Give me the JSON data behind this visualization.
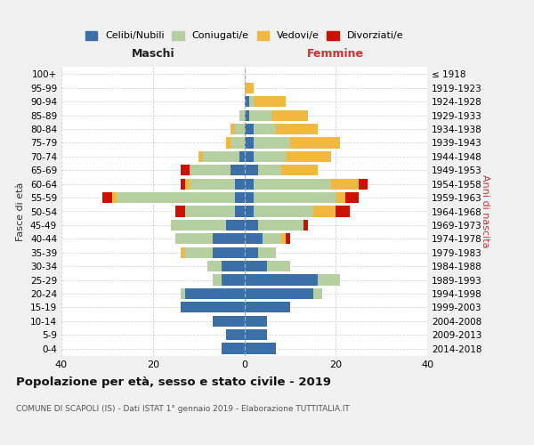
{
  "age_groups": [
    "0-4",
    "5-9",
    "10-14",
    "15-19",
    "20-24",
    "25-29",
    "30-34",
    "35-39",
    "40-44",
    "45-49",
    "50-54",
    "55-59",
    "60-64",
    "65-69",
    "70-74",
    "75-79",
    "80-84",
    "85-89",
    "90-94",
    "95-99",
    "100+"
  ],
  "birth_years": [
    "2014-2018",
    "2009-2013",
    "2004-2008",
    "1999-2003",
    "1994-1998",
    "1989-1993",
    "1984-1988",
    "1979-1983",
    "1974-1978",
    "1969-1973",
    "1964-1968",
    "1959-1963",
    "1954-1958",
    "1949-1953",
    "1944-1948",
    "1939-1943",
    "1934-1938",
    "1929-1933",
    "1924-1928",
    "1919-1923",
    "≤ 1918"
  ],
  "colors": {
    "celibi": "#3a6fa8",
    "coniugati": "#b5cfa0",
    "vedovi": "#f0b840",
    "divorziati": "#cc1100"
  },
  "males": {
    "celibi": [
      5,
      4,
      7,
      14,
      13,
      5,
      5,
      7,
      7,
      4,
      2,
      2,
      2,
      3,
      1,
      0,
      0,
      0,
      0,
      0,
      0
    ],
    "coniugati": [
      0,
      0,
      0,
      0,
      1,
      2,
      3,
      6,
      8,
      12,
      11,
      26,
      10,
      9,
      8,
      3,
      2,
      1,
      0,
      0,
      0
    ],
    "vedovi": [
      0,
      0,
      0,
      0,
      0,
      0,
      0,
      1,
      0,
      0,
      0,
      1,
      1,
      0,
      1,
      1,
      1,
      0,
      0,
      0,
      0
    ],
    "divorziati": [
      0,
      0,
      0,
      0,
      0,
      0,
      0,
      0,
      0,
      0,
      2,
      2,
      1,
      2,
      0,
      0,
      0,
      0,
      0,
      0,
      0
    ]
  },
  "females": {
    "celibi": [
      7,
      5,
      5,
      10,
      15,
      16,
      5,
      3,
      4,
      3,
      2,
      2,
      2,
      3,
      2,
      2,
      2,
      1,
      1,
      0,
      0
    ],
    "coniugati": [
      0,
      0,
      0,
      0,
      2,
      5,
      5,
      4,
      4,
      10,
      13,
      18,
      17,
      5,
      7,
      8,
      5,
      5,
      1,
      0,
      0
    ],
    "vedovi": [
      0,
      0,
      0,
      0,
      0,
      0,
      0,
      0,
      1,
      0,
      5,
      2,
      6,
      8,
      10,
      11,
      9,
      8,
      7,
      2,
      0
    ],
    "divorziati": [
      0,
      0,
      0,
      0,
      0,
      0,
      0,
      0,
      1,
      1,
      3,
      3,
      2,
      0,
      0,
      0,
      0,
      0,
      0,
      0,
      0
    ]
  },
  "xlim": 40,
  "title": "Popolazione per età, sesso e stato civile - 2019",
  "subtitle": "COMUNE DI SCAPOLI (IS) - Dati ISTAT 1° gennaio 2019 - Elaborazione TUTTITALIA.IT",
  "xlabel_left": "Maschi",
  "xlabel_right": "Femmine",
  "ylabel_left": "Fasce di età",
  "ylabel_right": "Anni di nascita",
  "legend_labels": [
    "Celibi/Nubili",
    "Coniugati/e",
    "Vedovi/e",
    "Divorziati/e"
  ],
  "bg_color": "#f0f0f0",
  "plot_bg": "#ffffff",
  "grid_color": "#cccccc"
}
